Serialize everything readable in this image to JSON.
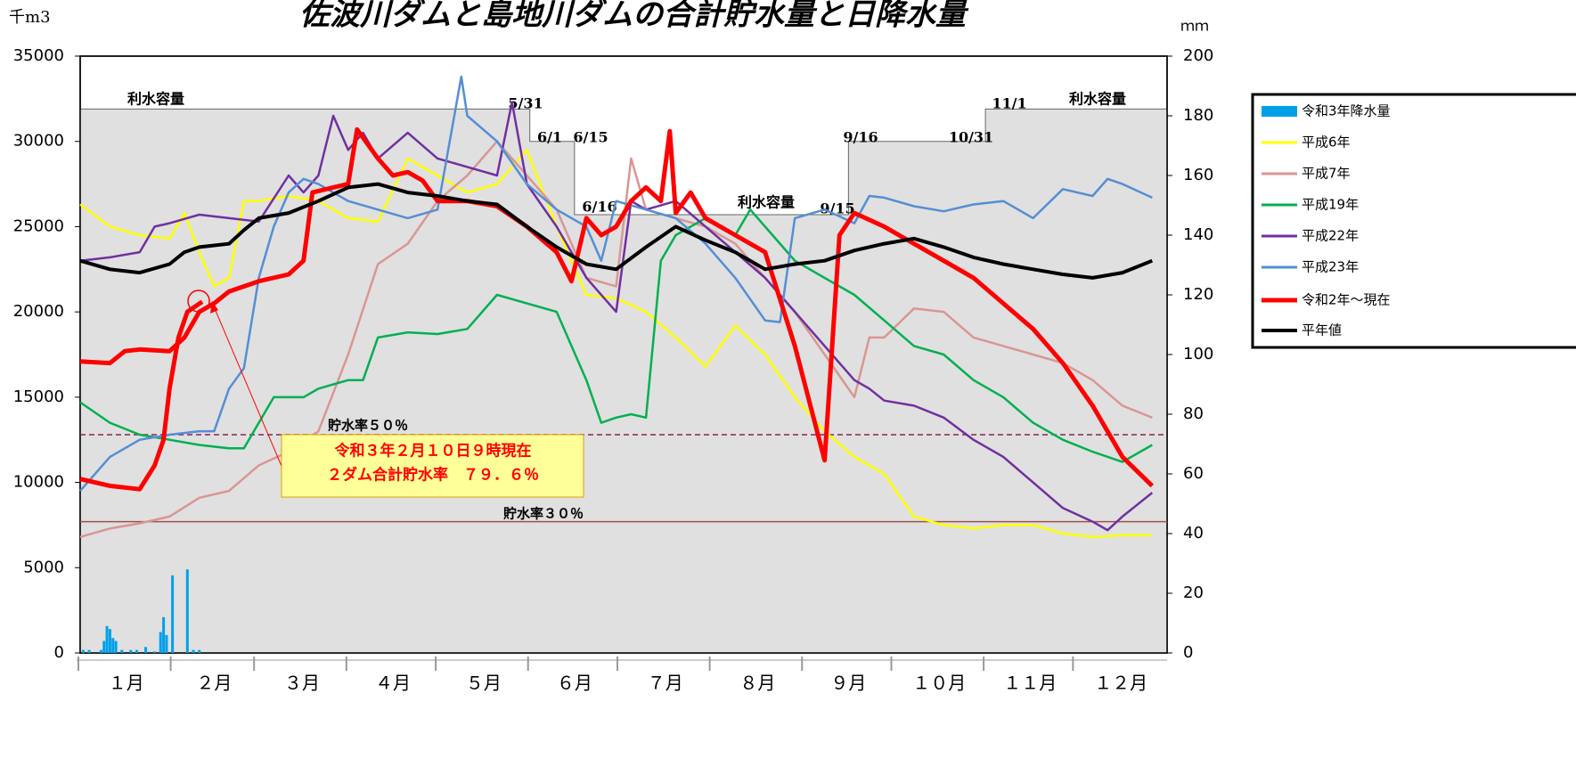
{
  "chart_data": {
    "type": "line",
    "title": "佐波川ダムと島地川ダムの合計貯水量と日降水量",
    "y_unit": "千m3",
    "y2_unit": "ｍｍ",
    "categories": [
      "１月",
      "２月",
      "３月",
      "４月",
      "５月",
      "６月",
      "７月",
      "８月",
      "９月",
      "１０月",
      "１１月",
      "１２月"
    ],
    "xlim": [
      0,
      365
    ],
    "ylim": [
      0,
      35000
    ],
    "yticks": [
      0,
      5000,
      10000,
      15000,
      20000,
      25000,
      30000,
      35000
    ],
    "y2lim": [
      0,
      200
    ],
    "y2ticks": [
      0,
      20,
      40,
      60,
      80,
      100,
      120,
      140,
      160,
      180,
      200
    ],
    "capacity": {
      "color": "#e0e0e0",
      "x": [
        0,
        151,
        151,
        166,
        166,
        258,
        258,
        304,
        304,
        365
      ],
      "values": [
        31900,
        31900,
        30000,
        30000,
        25700,
        25700,
        30000,
        30000,
        31900,
        31900
      ]
    },
    "capacity_labels": [
      "利水容量",
      "利水容量",
      "利水容量",
      "5/31",
      "6/1",
      "6/15",
      "6/16",
      "9/15",
      "9/16",
      "10/31",
      "11/1"
    ],
    "reference_lines": [
      {
        "label": "貯水率５０％",
        "value": 12800,
        "color": "#8b2252"
      },
      {
        "label": "貯水率３０％",
        "value": 7700,
        "color": "#a05050"
      }
    ],
    "annotation": [
      "令和３年２月１０日９時現在",
      "２ダム合計貯水率　７９．６％"
    ],
    "legend": "right",
    "series": [
      {
        "name": "令和3年降水量",
        "type": "bar",
        "axis": "y2",
        "color": "#00a0e9",
        "x": [
          1,
          3,
          7,
          8,
          9,
          10,
          11,
          12,
          14,
          17,
          19,
          22,
          25,
          27,
          28,
          29,
          31,
          36,
          38,
          40
        ],
        "values": [
          1,
          1,
          1,
          4,
          9,
          8,
          5,
          4,
          1,
          1,
          1,
          2,
          0.5,
          7,
          12,
          6,
          26,
          28,
          1,
          1
        ]
      },
      {
        "name": "平成6年",
        "color": "#ffff00",
        "x": [
          0,
          10,
          20,
          30,
          35,
          40,
          45,
          50,
          55,
          60,
          70,
          80,
          90,
          100,
          110,
          120,
          130,
          140,
          150,
          160,
          170,
          180,
          190,
          200,
          210,
          220,
          230,
          240,
          250,
          260,
          270,
          280,
          290,
          300,
          310,
          320,
          330,
          340,
          350,
          360
        ],
        "values": [
          26300,
          25000,
          24500,
          24300,
          25800,
          23500,
          21500,
          22000,
          26500,
          26500,
          26800,
          26500,
          25500,
          25300,
          29000,
          28000,
          27000,
          27500,
          29500,
          25000,
          21000,
          20800,
          20000,
          18500,
          16800,
          19200,
          17500,
          15000,
          13000,
          11500,
          10500,
          8000,
          7500,
          7300,
          7500,
          7500,
          7000,
          6800,
          6900,
          6900
        ]
      },
      {
        "name": "平成7年",
        "color": "#d99694",
        "x": [
          0,
          10,
          20,
          30,
          40,
          50,
          60,
          70,
          80,
          90,
          100,
          110,
          120,
          130,
          140,
          150,
          160,
          170,
          180,
          185,
          190,
          200,
          210,
          220,
          230,
          240,
          250,
          260,
          265,
          270,
          280,
          290,
          300,
          310,
          320,
          330,
          340,
          350,
          360
        ],
        "values": [
          6800,
          7300,
          7600,
          8000,
          9100,
          9500,
          11000,
          11800,
          13000,
          17500,
          22800,
          24000,
          26500,
          28000,
          30000,
          28000,
          26000,
          22000,
          21500,
          29000,
          26000,
          25500,
          25000,
          24000,
          22000,
          20000,
          17500,
          15000,
          18500,
          18500,
          20200,
          20000,
          18500,
          18000,
          17500,
          17000,
          16000,
          14500,
          13800
        ]
      },
      {
        "name": "平成19年",
        "color": "#00b050",
        "x": [
          0,
          10,
          20,
          30,
          40,
          50,
          55,
          60,
          65,
          75,
          80,
          90,
          95,
          100,
          110,
          120,
          130,
          140,
          150,
          160,
          170,
          175,
          180,
          185,
          190,
          195,
          200,
          210,
          220,
          225,
          230,
          240,
          250,
          260,
          270,
          280,
          290,
          300,
          310,
          320,
          330,
          340,
          350,
          360
        ],
        "values": [
          14700,
          13500,
          12800,
          12500,
          12200,
          12000,
          12000,
          13500,
          15000,
          15000,
          15500,
          16000,
          16000,
          18500,
          18800,
          18700,
          19000,
          21000,
          20500,
          20000,
          16000,
          13500,
          13800,
          14000,
          13800,
          23000,
          24500,
          25500,
          24500,
          26000,
          25000,
          23000,
          22000,
          21000,
          19500,
          18000,
          17500,
          16000,
          15000,
          13500,
          12500,
          11800,
          11200,
          12200
        ]
      },
      {
        "name": "平成22年",
        "color": "#7030a0",
        "x": [
          0,
          10,
          20,
          25,
          30,
          40,
          50,
          60,
          70,
          75,
          80,
          85,
          90,
          95,
          100,
          110,
          120,
          130,
          140,
          145,
          150,
          160,
          170,
          180,
          185,
          190,
          200,
          210,
          220,
          230,
          240,
          250,
          260,
          265,
          270,
          280,
          290,
          300,
          310,
          320,
          330,
          340,
          345,
          350,
          360
        ],
        "values": [
          23000,
          23200,
          23500,
          25000,
          25200,
          25700,
          25500,
          25300,
          28000,
          27000,
          28000,
          31500,
          29500,
          30500,
          29000,
          30500,
          29000,
          28500,
          28000,
          32300,
          27500,
          25000,
          22000,
          20000,
          26500,
          26000,
          26500,
          25000,
          23500,
          22000,
          20000,
          18000,
          16000,
          15500,
          14800,
          14500,
          13800,
          12500,
          11500,
          10000,
          8500,
          7700,
          7200,
          8000,
          9400
        ]
      },
      {
        "name": "平成23年",
        "color": "#558ed5",
        "x": [
          0,
          10,
          20,
          30,
          40,
          45,
          50,
          55,
          60,
          65,
          70,
          75,
          80,
          90,
          100,
          110,
          120,
          128,
          130,
          140,
          150,
          160,
          170,
          175,
          180,
          190,
          200,
          210,
          220,
          230,
          235,
          240,
          250,
          260,
          265,
          270,
          280,
          290,
          300,
          310,
          320,
          330,
          340,
          345,
          350,
          360
        ],
        "values": [
          9500,
          11500,
          12500,
          12800,
          13000,
          13000,
          15500,
          16700,
          22000,
          25000,
          27000,
          27800,
          27500,
          26500,
          26000,
          25500,
          26000,
          33800,
          31500,
          30000,
          27500,
          26000,
          25000,
          23000,
          26500,
          26000,
          25500,
          24000,
          22000,
          19500,
          19400,
          25500,
          26000,
          25200,
          26800,
          26700,
          26200,
          25900,
          26300,
          26500,
          25500,
          27200,
          26800,
          27800,
          27500,
          26700
        ]
      },
      {
        "name": "令和2年～現在",
        "color": "#ff0000",
        "width": 5,
        "x": [
          0,
          10,
          15,
          20,
          30,
          35,
          40,
          45,
          50,
          60,
          70,
          75,
          78,
          85,
          90,
          93,
          100,
          105,
          110,
          115,
          120,
          130,
          140,
          150,
          160,
          165,
          170,
          175,
          180,
          185,
          190,
          195,
          198,
          200,
          205,
          210,
          220,
          230,
          240,
          250,
          255,
          260,
          270,
          280,
          290,
          300,
          310,
          320,
          330,
          340,
          350,
          360,
          365,
          0,
          10,
          15,
          20,
          25,
          28,
          30,
          33,
          36,
          41
        ],
        "values": [
          17100,
          17000,
          17700,
          17800,
          17700,
          18500,
          20000,
          20500,
          21200,
          21800,
          22200,
          23000,
          27000,
          27300,
          27500,
          30700,
          29000,
          28000,
          28200,
          27700,
          26500,
          26500,
          26200,
          25000,
          23500,
          21800,
          25500,
          24500,
          25000,
          26500,
          27300,
          26500,
          30600,
          25800,
          27000,
          25500,
          24500,
          23500,
          18000,
          11300,
          24500,
          25800,
          25000,
          24000,
          23000,
          22000,
          20500,
          19000,
          17000,
          14500,
          11500,
          9800,
          null,
          10200,
          9800,
          9700,
          9600,
          11000,
          12500,
          15500,
          18500,
          20000,
          20600
        ]
      },
      {
        "name": "平年値",
        "color": "#000000",
        "width": 4,
        "x": [
          0,
          10,
          20,
          30,
          35,
          40,
          50,
          55,
          60,
          70,
          80,
          90,
          100,
          110,
          120,
          130,
          140,
          150,
          160,
          170,
          180,
          190,
          200,
          210,
          220,
          230,
          240,
          250,
          260,
          270,
          280,
          290,
          300,
          310,
          320,
          330,
          340,
          350,
          360
        ],
        "values": [
          23000,
          22500,
          22300,
          22800,
          23500,
          23800,
          24000,
          24800,
          25500,
          25800,
          26500,
          27300,
          27500,
          27000,
          26800,
          26500,
          26300,
          25000,
          23800,
          22800,
          22500,
          23800,
          25000,
          24200,
          23500,
          22500,
          22800,
          23000,
          23600,
          24000,
          24300,
          23800,
          23200,
          22800,
          22500,
          22200,
          22000,
          22300,
          23000
        ]
      }
    ]
  }
}
